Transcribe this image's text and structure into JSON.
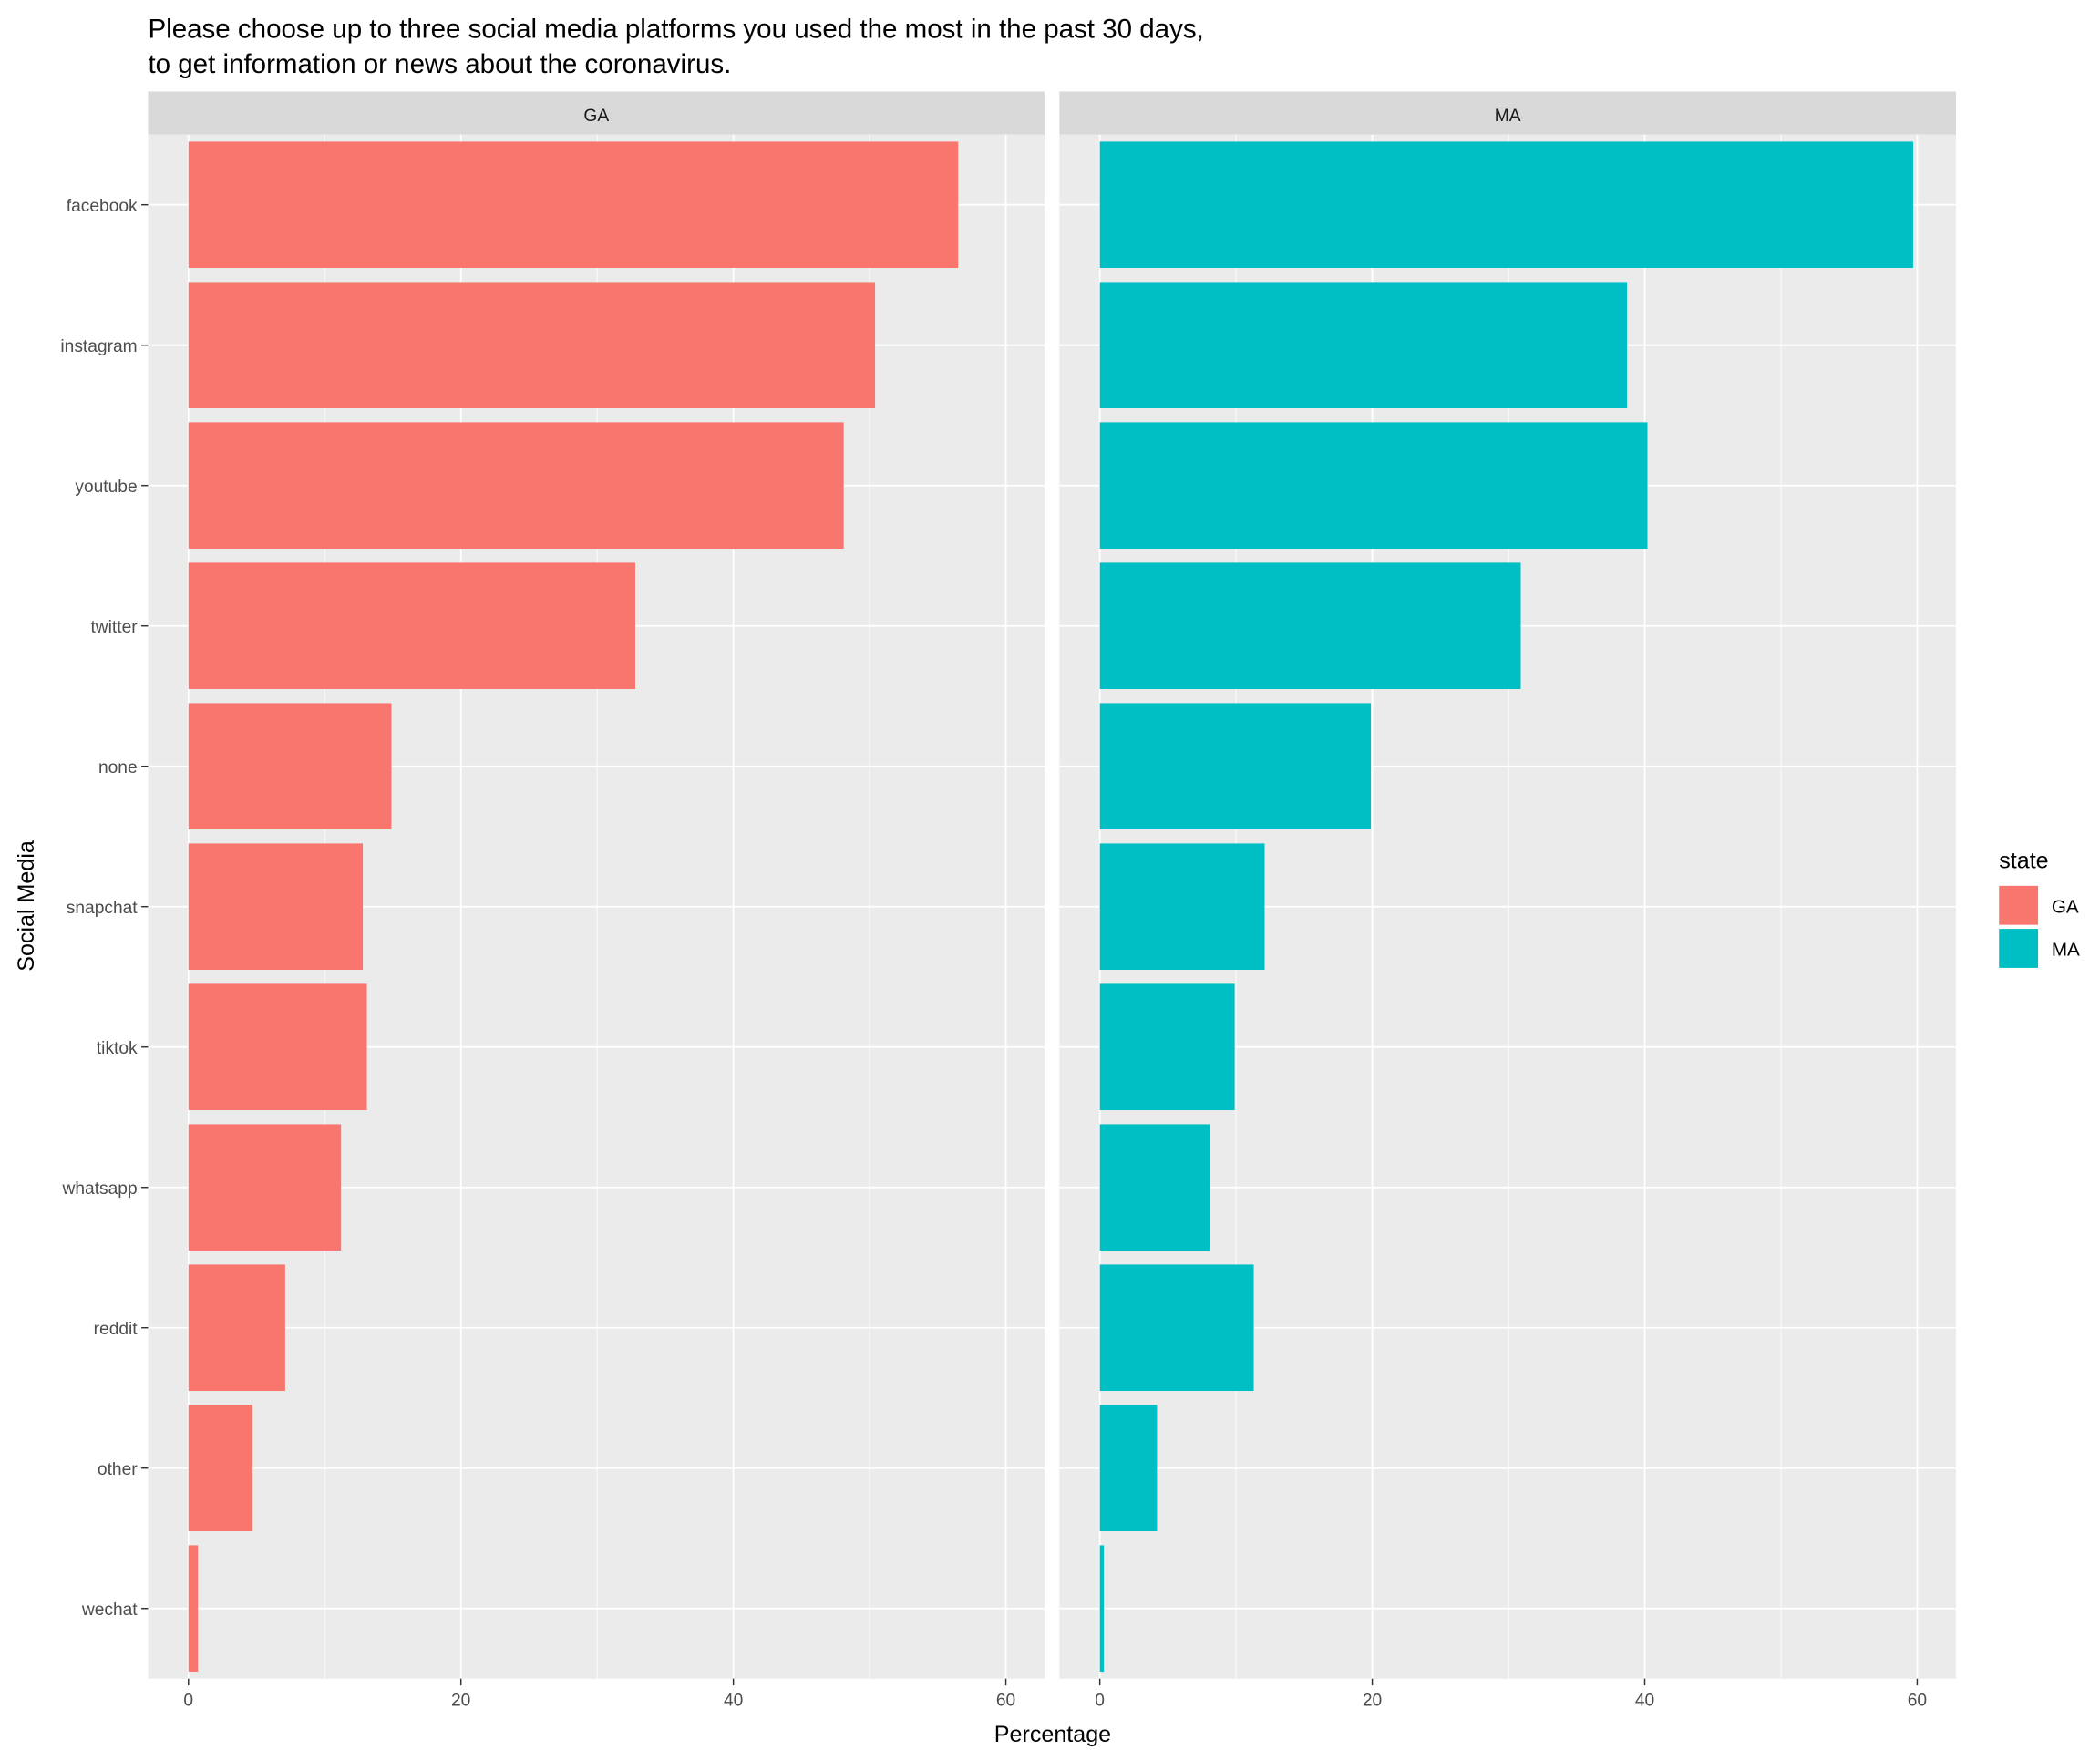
{
  "chart_data": {
    "type": "bar",
    "orientation": "horizontal",
    "title": "Please choose up to three social media platforms you used the most in the past 30 days,\nto get information or news about the coronavirus.",
    "xlabel": "Percentage",
    "ylabel": "Social Media",
    "xlim": [
      0,
      63
    ],
    "x_ticks": [
      0,
      20,
      40,
      60
    ],
    "grid": true,
    "categories": [
      "facebook",
      "instagram",
      "youtube",
      "twitter",
      "none",
      "snapchat",
      "tiktok",
      "whatsapp",
      "reddit",
      "other",
      "wechat"
    ],
    "facets": [
      "GA",
      "MA"
    ],
    "series": [
      {
        "name": "GA",
        "color": "#F8766D",
        "values": [
          56.5,
          50.4,
          48.1,
          32.8,
          14.9,
          12.8,
          13.1,
          11.2,
          7.1,
          4.7,
          0.7
        ]
      },
      {
        "name": "MA",
        "color": "#00BFC4",
        "values": [
          59.7,
          38.7,
          40.2,
          30.9,
          19.9,
          12.1,
          9.9,
          8.1,
          11.3,
          4.2,
          0.3
        ]
      }
    ],
    "legend": {
      "title": "state",
      "position": "right",
      "entries": [
        "GA",
        "MA"
      ]
    }
  }
}
